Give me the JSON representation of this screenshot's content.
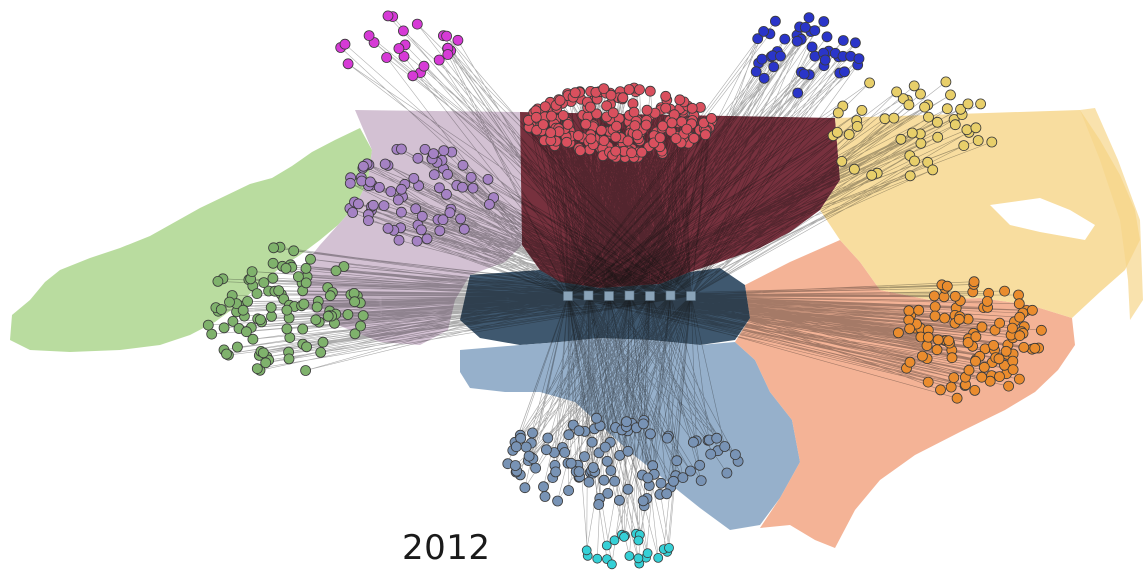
{
  "year_label": "2012",
  "colors": {
    "background": "#ffffff",
    "edge": "#111111",
    "node_stroke": "#3a3a3a"
  },
  "regions": [
    {
      "key": "west",
      "fill": "#a9d48a"
    },
    {
      "key": "upper-piedmont",
      "fill": "#c9b3c9"
    },
    {
      "key": "piedmont-north",
      "fill": "#6b1f2e"
    },
    {
      "key": "central",
      "fill": "#2f4a63"
    },
    {
      "key": "south-central",
      "fill": "#7f9fbf"
    },
    {
      "key": "southeast",
      "fill": "#f2a27f"
    },
    {
      "key": "northeast",
      "fill": "#f6d58a"
    }
  ],
  "clusters": [
    {
      "key": "magenta",
      "color": "#d63ad6",
      "count": 24
    },
    {
      "key": "blue",
      "color": "#2a35c9",
      "count": 45
    },
    {
      "key": "red",
      "color": "#d9505e",
      "count": 240
    },
    {
      "key": "yellow",
      "color": "#e8cf6a",
      "count": 50
    },
    {
      "key": "purple",
      "color": "#a582c4",
      "count": 75
    },
    {
      "key": "green",
      "color": "#7fb26c",
      "count": 105
    },
    {
      "key": "orange",
      "color": "#ea8c2e",
      "count": 110
    },
    {
      "key": "steel",
      "color": "#7893b5",
      "count": 110
    },
    {
      "key": "cyan",
      "color": "#35d0d6",
      "count": 22
    }
  ],
  "hub": {
    "color": "#8aa3b8",
    "count": 7
  }
}
